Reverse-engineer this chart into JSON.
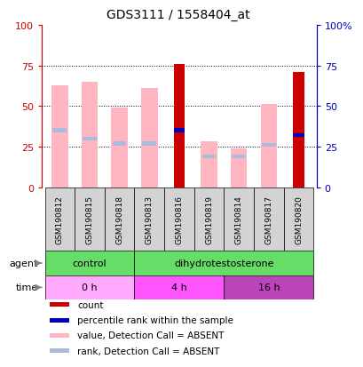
{
  "title": "GDS3111 / 1558404_at",
  "samples": [
    "GSM190812",
    "GSM190815",
    "GSM190818",
    "GSM190813",
    "GSM190816",
    "GSM190819",
    "GSM190814",
    "GSM190817",
    "GSM190820"
  ],
  "count_values": [
    0,
    0,
    0,
    0,
    76,
    0,
    0,
    0,
    71
  ],
  "rank_values": [
    35,
    30,
    27,
    27,
    35,
    0,
    0,
    26,
    32
  ],
  "value_absent": [
    63,
    65,
    49,
    61,
    0,
    28,
    24,
    51,
    0
  ],
  "rank_absent": [
    35,
    30,
    27,
    27,
    0,
    19,
    19,
    26,
    0
  ],
  "ylim": [
    0,
    100
  ],
  "yticks_left": [
    0,
    25,
    50,
    75,
    100
  ],
  "ytick_labels_left": [
    "0",
    "25",
    "50",
    "75",
    "100"
  ],
  "ytick_labels_right": [
    "0",
    "25",
    "50",
    "75",
    "100%"
  ],
  "count_color": "#CC0000",
  "rank_color": "#0000BB",
  "value_absent_color": "#FFB6C1",
  "rank_absent_color": "#AABBDD",
  "bar_width": 0.55,
  "left_axis_color": "#CC0000",
  "right_axis_color": "#0000BB",
  "background_color": "#ffffff",
  "agent_green": "#66DD66",
  "time_colors": [
    "#FFAAFF",
    "#FF55FF",
    "#BB44BB"
  ],
  "time_labels": [
    "0 h",
    "4 h",
    "16 h"
  ],
  "time_ranges": [
    [
      0,
      3
    ],
    [
      3,
      6
    ],
    [
      6,
      9
    ]
  ],
  "legend_items": [
    {
      "color": "#CC0000",
      "label": "count"
    },
    {
      "color": "#0000BB",
      "label": "percentile rank within the sample"
    },
    {
      "color": "#FFB6C1",
      "label": "value, Detection Call = ABSENT"
    },
    {
      "color": "#AABBDD",
      "label": "rank, Detection Call = ABSENT"
    }
  ]
}
